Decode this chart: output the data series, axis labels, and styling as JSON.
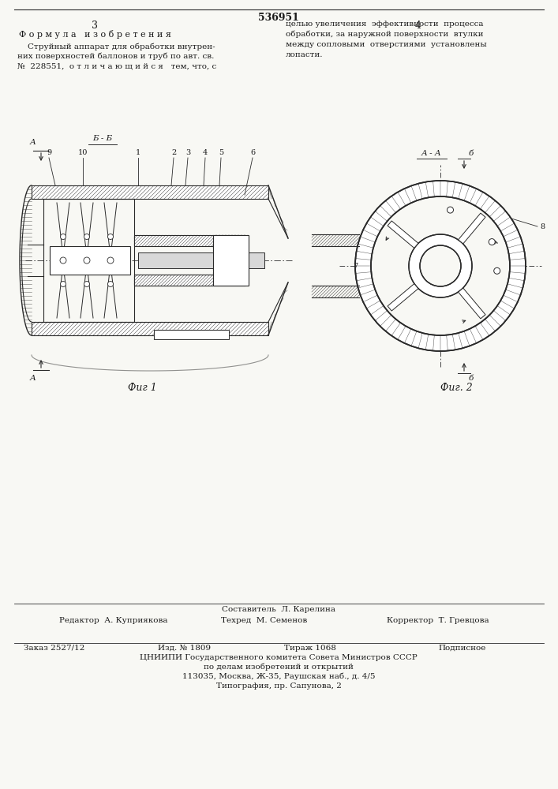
{
  "page_number": "536951",
  "page_col_left": "3",
  "page_col_right": "4",
  "section_title": "Ф о р м у л а   и з о б р е т е н и я",
  "left_line1": "    Струйный аппарат для обработки внутрен-",
  "left_line2": "них поверхностей баллонов и труб по авт. св.",
  "left_line3": "№  228551,  о т л и ч а ю щ и й с я   тем, что, с",
  "right_line1": "целью увеличения  эффективности  процесса",
  "right_line2": "обработки, за наружной поверхности  втулки",
  "right_line3": "между сопловыми  отверстиями  установлены",
  "right_line4": "лопасти.",
  "fig1_label": "Фиг 1",
  "fig2_label": "Фиг. 2",
  "footer_composer": "Составитель  Л. Карелина",
  "footer_editor": "Редактор  А. Куприякова",
  "footer_tech": "Техред  М. Семенов",
  "footer_corrector": "Корректор  Т. Гревцова",
  "footer_order": "Заказ 2527/12",
  "footer_print_num": "Изд. № 1809",
  "footer_circulation": "Тираж 1068",
  "footer_signed": "Подписное",
  "footer_org": "ЦНИИПИ Государственного комитета Совета Министров СССР",
  "footer_dept": "по делам изобретений и открытий",
  "footer_address": "113035, Москва, Ж-35, Раушская наб., д. 4/5",
  "footer_print2": "Типография, пр. Сапунова, 2",
  "bg_color": "#f8f8f4",
  "line_color": "#2a2a2a",
  "text_color": "#1a1a1a"
}
